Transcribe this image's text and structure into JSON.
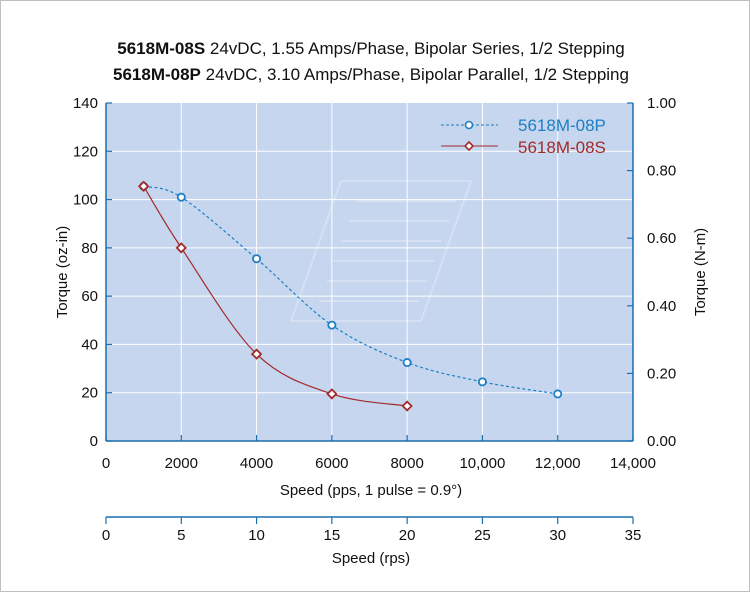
{
  "chart_data": {
    "type": "line",
    "title_lines": [
      {
        "model": "5618M-08S",
        "spec": " 24vDC, 1.55 Amps/Phase, Bipolar Series, 1/2 Stepping"
      },
      {
        "model": "5618M-08P",
        "spec": " 24vDC, 3.10 Amps/Phase, Bipolar Parallel, 1/2 Stepping"
      }
    ],
    "xlabel": "Speed (pps, 1 pulse = 0.9°)",
    "ylabel_left": "Torque (oz-in)",
    "ylabel_right": "Torque (N-m)",
    "xlabel_secondary": "Speed (rps)",
    "xlim": [
      0,
      14000
    ],
    "ylim_left": [
      0,
      140
    ],
    "ylim_right": [
      0,
      1.0
    ],
    "xlim_secondary": [
      0,
      35
    ],
    "x_ticks": [
      "0",
      "2000",
      "4000",
      "6000",
      "8000",
      "10,000",
      "12,000",
      "14,000"
    ],
    "y_ticks_left": [
      "0",
      "20",
      "40",
      "60",
      "80",
      "100",
      "120",
      "140"
    ],
    "y_ticks_right": [
      "0.00",
      "0.20",
      "0.40",
      "0.60",
      "0.80",
      "1.00"
    ],
    "x_ticks_secondary": [
      "0",
      "5",
      "10",
      "15",
      "20",
      "25",
      "30",
      "35"
    ],
    "grid": true,
    "legend_position": "top-right",
    "series": [
      {
        "name": "5618M-08P",
        "color": "#1d7fc4",
        "line_style": "dashed",
        "marker": "circle",
        "x": [
          1000,
          2000,
          4000,
          6000,
          8000,
          10000,
          12000
        ],
        "y": [
          105.5,
          101,
          75.5,
          48,
          32.5,
          24.5,
          19.5
        ]
      },
      {
        "name": "5618M-08S",
        "color": "#a32a2a",
        "line_style": "solid",
        "marker": "diamond",
        "x": [
          1000,
          2000,
          4000,
          6000,
          8000
        ],
        "y": [
          105.5,
          80,
          36,
          19.5,
          14.5
        ]
      }
    ]
  }
}
